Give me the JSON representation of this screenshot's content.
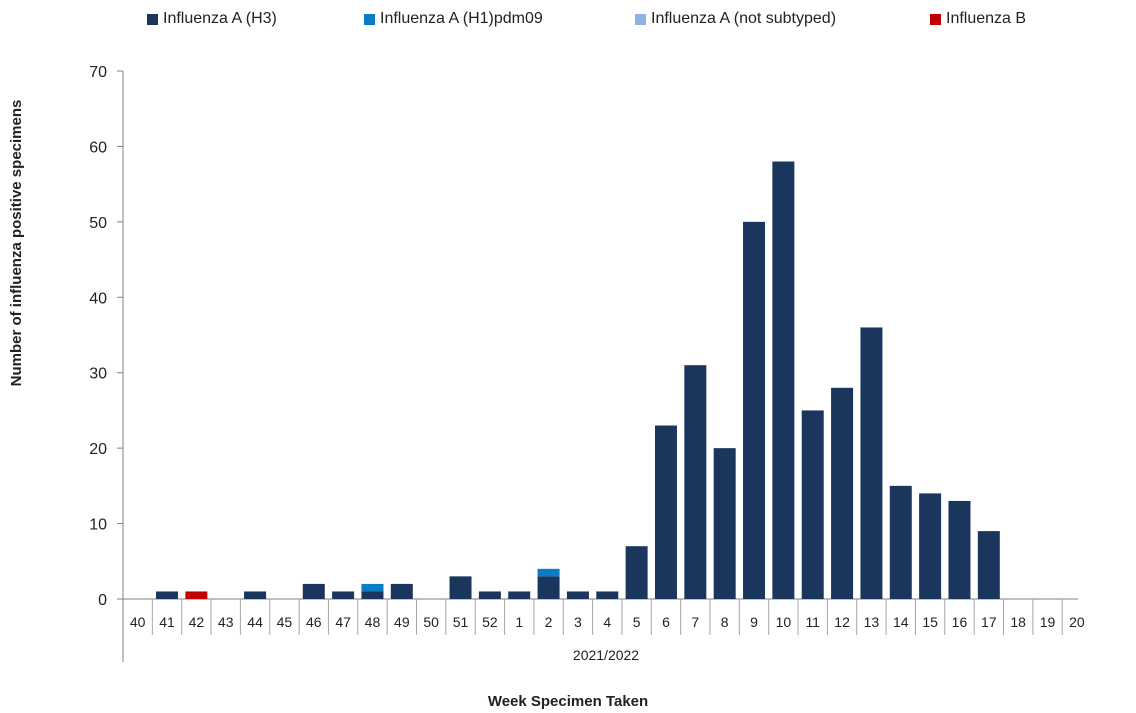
{
  "chart_data": {
    "type": "bar",
    "stacked": true,
    "xlabel": "Week Specimen Taken",
    "ylabel": "Number of influenza positive specimens",
    "group_label": "2021/2022",
    "ylim": [
      0,
      70
    ],
    "yticks": [
      0,
      10,
      20,
      30,
      40,
      50,
      60,
      70
    ],
    "grid": false,
    "legend_position": "top",
    "categories": [
      "40",
      "41",
      "42",
      "43",
      "44",
      "45",
      "46",
      "47",
      "48",
      "49",
      "50",
      "51",
      "52",
      "1",
      "2",
      "3",
      "4",
      "5",
      "6",
      "7",
      "8",
      "9",
      "10",
      "11",
      "12",
      "13",
      "14",
      "15",
      "16",
      "17",
      "18",
      "19",
      "20"
    ],
    "series": [
      {
        "name": "Influenza A (H3)",
        "color": "#1b365d",
        "values": [
          0,
          1,
          0,
          0,
          1,
          0,
          2,
          1,
          1,
          2,
          0,
          3,
          1,
          1,
          3,
          1,
          1,
          7,
          23,
          31,
          20,
          50,
          58,
          25,
          28,
          36,
          15,
          14,
          13,
          9,
          0,
          0,
          0
        ]
      },
      {
        "name": "Influenza A (H1)pdm09",
        "color": "#0a7bc4",
        "values": [
          0,
          0,
          0,
          0,
          0,
          0,
          0,
          0,
          1,
          0,
          0,
          0,
          0,
          0,
          1,
          0,
          0,
          0,
          0,
          0,
          0,
          0,
          0,
          0,
          0,
          0,
          0,
          0,
          0,
          0,
          0,
          0,
          0
        ]
      },
      {
        "name": "Influenza A (not subtyped)",
        "color": "#8fb4e3",
        "values": [
          0,
          0,
          0,
          0,
          0,
          0,
          0,
          0,
          0,
          0,
          0,
          0,
          0,
          0,
          0,
          0,
          0,
          0,
          0,
          0,
          0,
          0,
          0,
          0,
          0,
          0,
          0,
          0,
          0,
          0,
          0,
          0,
          0
        ]
      },
      {
        "name": "Influenza B",
        "color": "#c00000",
        "values": [
          0,
          0,
          1,
          0,
          0,
          0,
          0,
          0,
          0,
          0,
          0,
          0,
          0,
          0,
          0,
          0,
          0,
          0,
          0,
          0,
          0,
          0,
          0,
          0,
          0,
          0,
          0,
          0,
          0,
          0,
          0,
          0,
          0
        ]
      }
    ]
  }
}
